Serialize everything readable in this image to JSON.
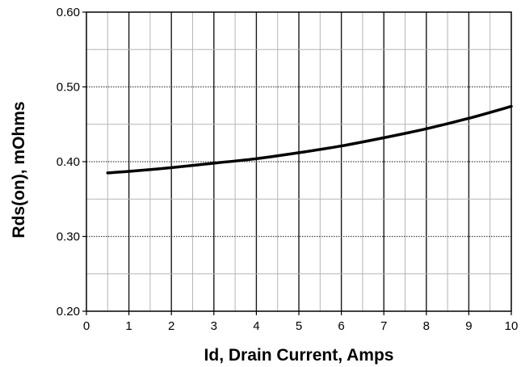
{
  "chart_data": {
    "type": "line",
    "title": "",
    "xlabel": "Id, Drain Current, Amps",
    "ylabel": "Rds(on),  mOhms",
    "xlim": [
      0,
      10
    ],
    "ylim": [
      0.2,
      0.6
    ],
    "x_ticks": [
      "0",
      "1",
      "2",
      "3",
      "4",
      "5",
      "6",
      "7",
      "8",
      "9",
      "10"
    ],
    "y_ticks": [
      "0.20",
      "0.30",
      "0.40",
      "0.50",
      "0.60"
    ],
    "grid": true,
    "legend": "none",
    "line_color": "#000000",
    "series": [
      {
        "x": [
          0.5,
          1,
          2,
          3,
          4,
          5,
          6,
          7,
          8,
          9,
          10
        ],
        "y": [
          0.385,
          0.387,
          0.392,
          0.398,
          0.404,
          0.412,
          0.421,
          0.432,
          0.444,
          0.458,
          0.474
        ]
      }
    ]
  }
}
